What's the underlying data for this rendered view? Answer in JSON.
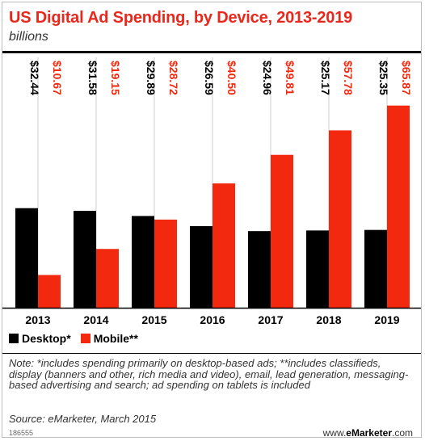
{
  "title": "US Digital Ad Spending, by Device, 2013-2019",
  "subtitle": "billions",
  "legend": {
    "desktop": "Desktop*",
    "mobile": "Mobile**"
  },
  "note": "Note: *includes spending primarily on desktop-based ads; **includes classifieds, display (banners and other, rich media and video), email, lead generation, messaging-based advertising and search; ad spending on tablets is included",
  "source": "Source: eMarketer, March 2015",
  "chart_id": "186555",
  "brand": {
    "prefix": "www.",
    "name": "eMarketer",
    "suffix": ".com"
  },
  "colors": {
    "desktop": "#000000",
    "mobile": "#f2290f",
    "title": "#e8281c"
  },
  "chart_data": {
    "type": "bar",
    "title": "US Digital Ad Spending, by Device, 2013-2019",
    "subtitle": "billions",
    "categories": [
      "2013",
      "2014",
      "2015",
      "2016",
      "2017",
      "2018",
      "2019"
    ],
    "series": [
      {
        "name": "Desktop*",
        "values": [
          32.44,
          31.58,
          29.89,
          26.59,
          24.96,
          25.17,
          25.35
        ],
        "labels": [
          "$32.44",
          "$31.58",
          "$29.89",
          "$26.59",
          "$24.96",
          "$25.17",
          "$25.35"
        ]
      },
      {
        "name": "Mobile**",
        "values": [
          10.67,
          19.15,
          28.72,
          40.5,
          49.81,
          57.78,
          65.87
        ],
        "labels": [
          "$10.67",
          "$19.15",
          "$28.72",
          "$40.50",
          "$49.81",
          "$57.78",
          "$65.87"
        ]
      }
    ],
    "ylim": [
      0,
      70
    ],
    "grid": false,
    "legend_position": "bottom-left"
  }
}
